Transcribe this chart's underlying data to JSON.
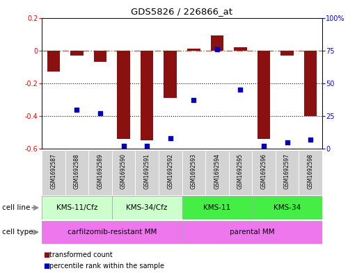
{
  "title": "GDS5826 / 226866_at",
  "samples": [
    "GSM1692587",
    "GSM1692588",
    "GSM1692589",
    "GSM1692590",
    "GSM1692591",
    "GSM1692592",
    "GSM1692593",
    "GSM1692594",
    "GSM1692595",
    "GSM1692596",
    "GSM1692597",
    "GSM1692598"
  ],
  "transformed_count": [
    -0.13,
    -0.03,
    -0.07,
    -0.54,
    -0.55,
    -0.29,
    0.01,
    0.09,
    0.02,
    -0.54,
    -0.03,
    -0.4
  ],
  "percentile_rank": [
    null,
    30,
    27,
    2,
    2,
    8,
    37,
    76,
    45,
    2,
    5,
    7
  ],
  "cell_line_groups": [
    {
      "label": "KMS-11/Cfz",
      "start": 0,
      "end": 3,
      "color": "#ccffcc"
    },
    {
      "label": "KMS-34/Cfz",
      "start": 3,
      "end": 6,
      "color": "#ccffcc"
    },
    {
      "label": "KMS-11",
      "start": 6,
      "end": 9,
      "color": "#44ee44"
    },
    {
      "label": "KMS-34",
      "start": 9,
      "end": 12,
      "color": "#44ee44"
    }
  ],
  "cell_type_groups": [
    {
      "label": "carfilzomib-resistant MM",
      "start": 0,
      "end": 6,
      "color": "#ee77ee"
    },
    {
      "label": "parental MM",
      "start": 6,
      "end": 12,
      "color": "#ee77ee"
    }
  ],
  "bar_color": "#8B1010",
  "dot_color": "#0000BB",
  "hline_color": "#CC5555",
  "ylim_left": [
    -0.6,
    0.2
  ],
  "ylim_right": [
    0,
    100
  ],
  "legend_items": [
    {
      "label": "transformed count",
      "color": "#8B1010"
    },
    {
      "label": "percentile rank within the sample",
      "color": "#0000BB"
    }
  ],
  "background_color": "#ffffff",
  "header_bg": "#d3d3d3",
  "left_labels_color": "gray",
  "cell_line_border_color": "#aaaaaa",
  "cell_type_border_color": "#aaaaaa"
}
